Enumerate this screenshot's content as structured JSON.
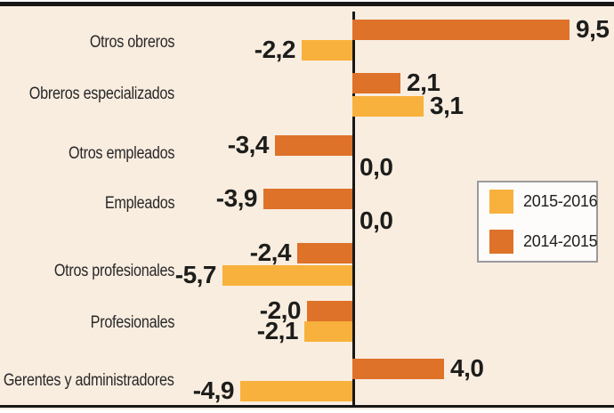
{
  "chart": {
    "background_color": "#f9ede0",
    "axis_color": "#171717",
    "text_color": "#1d1d1b",
    "legend": {
      "items": [
        {
          "label": "2015-2016",
          "color": "#f8b13c"
        },
        {
          "label": "2014-2015",
          "color": "#de7229"
        }
      ]
    }
  },
  "chart_data": {
    "type": "bar",
    "orientation": "horizontal",
    "categories": [
      "Otros obreros",
      "Obreros especializados",
      "Otros empleados",
      "Empleados",
      "Otros profesionales",
      "Profesionales",
      "Gerentes y administradores"
    ],
    "series": [
      {
        "name": "2014-2015",
        "color": "#de7229",
        "values": [
          9.5,
          2.1,
          -3.4,
          -3.9,
          -2.4,
          -2.0,
          4.0
        ],
        "display_labels": [
          "9,5",
          "2,1",
          "-3,4",
          "-3,9",
          "-2,4",
          "-2,0",
          "4,0"
        ]
      },
      {
        "name": "2015-2016",
        "color": "#f8b13c",
        "values": [
          -2.2,
          3.1,
          0.0,
          0.0,
          -5.7,
          -2.1,
          -4.9
        ],
        "display_labels": [
          "-2,2",
          "3,1",
          "0,0",
          "0,0",
          "-5,7",
          "-2,1",
          "-4,9"
        ]
      }
    ],
    "bar_order_within_category": [
      "2014-2015",
      "2015-2016"
    ],
    "value_axis_range": [
      -6.5,
      11.5
    ],
    "grid": false,
    "zero_baseline": true,
    "legend_position": "right-middle"
  }
}
